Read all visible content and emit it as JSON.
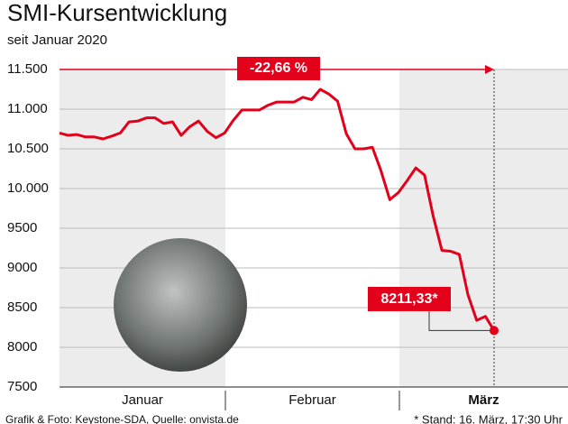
{
  "chart_data": {
    "type": "line",
    "title": "SMI-Kursentwicklung",
    "subtitle": "seit Januar 2020",
    "months": [
      "Januar",
      "Februar",
      "März"
    ],
    "series": [
      {
        "name": "SMI",
        "color": "#e2001a",
        "values": [
          10700,
          10670,
          10680,
          10650,
          10650,
          10625,
          10660,
          10700,
          10840,
          10850,
          10890,
          10890,
          10820,
          10840,
          10670,
          10780,
          10850,
          10720,
          10640,
          10700,
          10860,
          10990,
          10990,
          10990,
          11050,
          11090,
          11090,
          11090,
          11150,
          11120,
          11250,
          11190,
          11100,
          10690,
          10500,
          10500,
          10520,
          10220,
          9860,
          9950,
          10100,
          10260,
          10170,
          9650,
          9220,
          9210,
          9170,
          8660,
          8340,
          8390,
          8211.33
        ]
      }
    ],
    "ylim": [
      7500,
      11500
    ],
    "yticks": [
      {
        "value": 11500,
        "label": "11.500"
      },
      {
        "value": 11000,
        "label": "11.000"
      },
      {
        "value": 10500,
        "label": "10.500"
      },
      {
        "value": 10000,
        "label": "10.000"
      },
      9500,
      9000,
      8500,
      8000,
      7500
    ],
    "grid": true,
    "change_label": "-22,66 %",
    "end_label": "8211,33*",
    "source": "Grafik & Foto: Keystone-SDA, Quelle: onvista.de",
    "note": "* Stand: 16. März, 17:30 Uhr"
  }
}
